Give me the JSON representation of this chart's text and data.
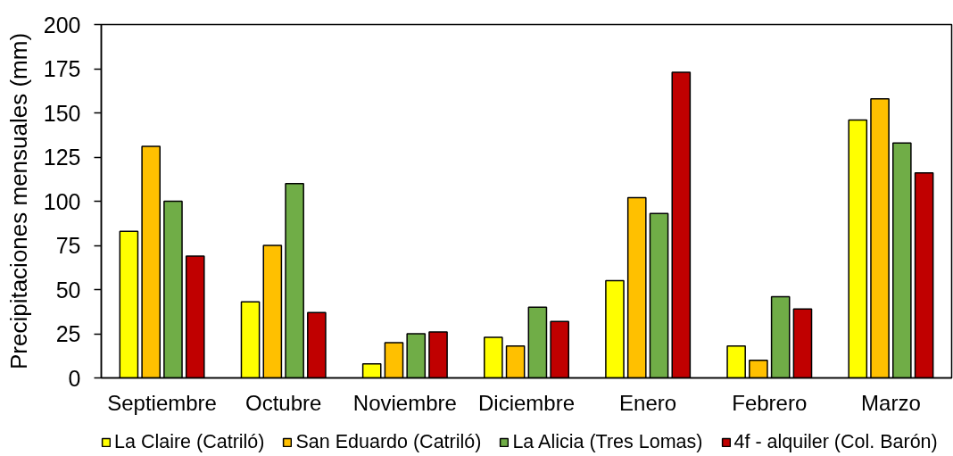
{
  "chart_data": {
    "type": "bar",
    "ylabel": "Precipitaciones mensuales (mm)",
    "categories": [
      "Septiembre",
      "Octubre",
      "Noviembre",
      "Diciembre",
      "Enero",
      "Febrero",
      "Marzo"
    ],
    "series": [
      {
        "name": "La Claire (Catriló)",
        "color": "#ffff00",
        "values": [
          83,
          43,
          8,
          23,
          55,
          18,
          146
        ]
      },
      {
        "name": "San Eduardo (Catriló)",
        "color": "#ffc000",
        "values": [
          131,
          75,
          20,
          18,
          102,
          10,
          158
        ]
      },
      {
        "name": "La Alicia (Tres Lomas)",
        "color": "#70ad47",
        "values": [
          100,
          110,
          25,
          40,
          93,
          46,
          133
        ]
      },
      {
        "name": "4f - alquiler (Col. Barón)",
        "color": "#c00000",
        "values": [
          69,
          37,
          26,
          32,
          173,
          39,
          116
        ]
      }
    ],
    "ylim": [
      0,
      200
    ],
    "yticks": [
      0,
      25,
      50,
      75,
      100,
      125,
      150,
      175,
      200
    ],
    "legend": "bottom"
  }
}
